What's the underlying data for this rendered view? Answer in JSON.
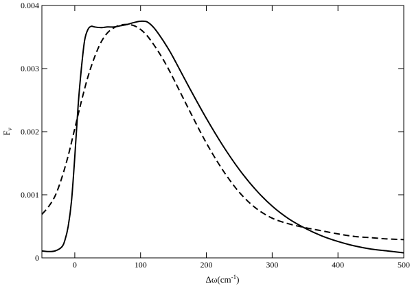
{
  "chart_data": {
    "type": "line",
    "xlabel": "Δω(cm",
    "xlabel_sup": "-1",
    "xlabel_close": ")",
    "ylabel": "F",
    "ylabel_sub": "ν",
    "xlim": [
      -50,
      500
    ],
    "ylim": [
      0,
      0.004
    ],
    "xticks": [
      0,
      100,
      200,
      300,
      400,
      500
    ],
    "xtick_labels": [
      "0",
      "100",
      "200",
      "300",
      "400",
      "500"
    ],
    "yticks": [
      0,
      0.001,
      0.002,
      0.003,
      0.004
    ],
    "ytick_labels": [
      "0",
      "0.001",
      "0.002",
      "0.003",
      "0.004"
    ],
    "grid": false,
    "series": [
      {
        "style": "solid",
        "color": "#000000",
        "x": [
          -50,
          -40,
          -30,
          -20,
          -15,
          -10,
          -5,
          0,
          5,
          10,
          15,
          20,
          25,
          30,
          40,
          50,
          60,
          70,
          80,
          90,
          100,
          110,
          120,
          130,
          140,
          150,
          175,
          200,
          225,
          250,
          275,
          300,
          325,
          350,
          375,
          400,
          425,
          450,
          475,
          500
        ],
        "y": [
          0.00011,
          0.0001,
          0.00011,
          0.00017,
          0.00028,
          0.0005,
          0.0009,
          0.0016,
          0.0024,
          0.003,
          0.00345,
          0.00362,
          0.00367,
          0.00366,
          0.00365,
          0.00366,
          0.00366,
          0.00368,
          0.0037,
          0.00373,
          0.00375,
          0.00374,
          0.00365,
          0.00351,
          0.00335,
          0.00317,
          0.00268,
          0.00221,
          0.00178,
          0.0014,
          0.00108,
          0.00082,
          0.00062,
          0.00047,
          0.00035,
          0.00026,
          0.00019,
          0.00014,
          0.00011,
          8e-05
        ]
      },
      {
        "style": "dashed",
        "color": "#000000",
        "x": [
          -50,
          -40,
          -30,
          -20,
          -10,
          0,
          10,
          20,
          30,
          40,
          50,
          60,
          70,
          80,
          90,
          100,
          110,
          120,
          130,
          140,
          150,
          175,
          200,
          225,
          250,
          275,
          300,
          325,
          350,
          375,
          400,
          425,
          450,
          475,
          500
        ],
        "y": [
          0.00069,
          0.00081,
          0.00098,
          0.00126,
          0.00162,
          0.00205,
          0.00248,
          0.00287,
          0.00318,
          0.00342,
          0.00357,
          0.00365,
          0.00369,
          0.0037,
          0.00368,
          0.00362,
          0.00352,
          0.00338,
          0.00322,
          0.00304,
          0.00284,
          0.00232,
          0.00182,
          0.00139,
          0.00104,
          0.00079,
          0.00063,
          0.00054,
          0.00048,
          0.00043,
          0.00038,
          0.00034,
          0.00032,
          0.0003,
          0.00029
        ]
      }
    ]
  }
}
